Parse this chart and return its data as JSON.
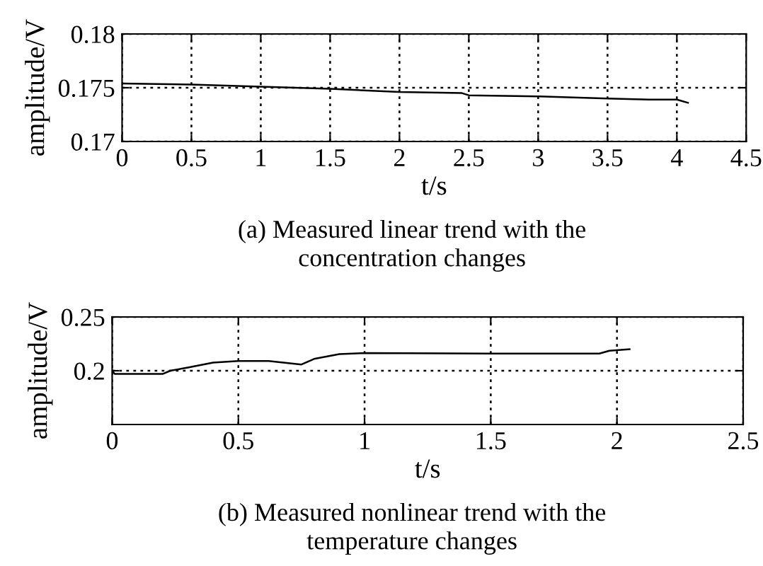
{
  "chart_data": [
    {
      "type": "line",
      "xlabel": "t/s",
      "ylabel": "amplitude/V",
      "annotations": [
        "(a) Measured linear trend with the\nconcentration changes"
      ],
      "xlim": [
        0,
        4.5
      ],
      "ylim": [
        0.17,
        0.18
      ],
      "xticks": [
        0,
        0.5,
        1,
        1.5,
        2,
        2.5,
        3,
        3.5,
        4,
        4.5
      ],
      "yticks": [
        0.17,
        0.175,
        0.18
      ],
      "grid": true,
      "series": [
        {
          "color": "#000000",
          "x": [
            0,
            0.5,
            1,
            1.5,
            2,
            2.45,
            2.5,
            3,
            3.5,
            3.8,
            4,
            4.08
          ],
          "values": [
            0.1754,
            0.1753,
            0.1751,
            0.1749,
            0.1746,
            0.1745,
            0.1743,
            0.1742,
            0.174,
            0.1739,
            0.1739,
            0.1736
          ]
        }
      ]
    },
    {
      "type": "line",
      "xlabel": "t/s",
      "ylabel": "amplitude/V",
      "annotations": [
        "(b) Measured nonlinear trend with the\ntemperature changes"
      ],
      "xlim": [
        0,
        2.5
      ],
      "ylim": [
        0.15,
        0.25
      ],
      "xticks": [
        0,
        0.5,
        1,
        1.5,
        2,
        2.5
      ],
      "yticks": [
        0.2,
        0.25
      ],
      "grid": true,
      "series": [
        {
          "color": "#000000",
          "x": [
            0,
            0.01,
            0.2,
            0.23,
            0.3,
            0.4,
            0.5,
            0.62,
            0.75,
            0.8,
            0.9,
            1.0,
            1.5,
            1.93,
            1.97,
            2.05
          ],
          "values": [
            0.2,
            0.197,
            0.197,
            0.2,
            0.203,
            0.2075,
            0.209,
            0.209,
            0.2058,
            0.211,
            0.2155,
            0.2164,
            0.216,
            0.216,
            0.2186,
            0.22
          ]
        }
      ]
    }
  ]
}
